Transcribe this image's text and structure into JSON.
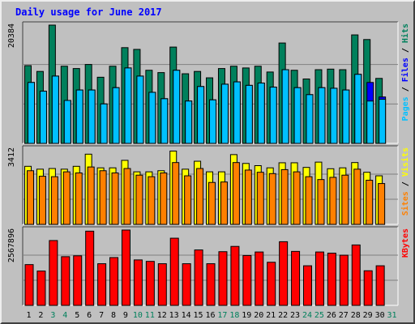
{
  "chart_data": {
    "type": "bar",
    "title": "Daily usage for June 2017",
    "categories": [
      "1",
      "2",
      "3",
      "4",
      "5",
      "6",
      "7",
      "8",
      "9",
      "10",
      "11",
      "12",
      "13",
      "14",
      "15",
      "16",
      "17",
      "18",
      "19",
      "20",
      "21",
      "22",
      "23",
      "24",
      "25",
      "26",
      "27",
      "28",
      "29",
      "30",
      "31"
    ],
    "weekend_days": [
      "3",
      "4",
      "10",
      "11",
      "17",
      "18",
      "24",
      "25",
      "31"
    ],
    "panels": [
      {
        "ymax_label": "20384",
        "ylim": [
          0,
          20384
        ],
        "axis_labels": [
          "Pages",
          "Files",
          "Hits"
        ],
        "series": [
          {
            "name": "Hits",
            "color": "#00805c",
            "values": [
              13400,
              12400,
              20384,
              13300,
              12900,
              13600,
              11400,
              13300,
              16500,
              16200,
              12600,
              12200,
              16600,
              12000,
              12400,
              11300,
              12900,
              13300,
              13000,
              13300,
              12300,
              17300,
              12600,
              11100,
              12700,
              12800,
              12700,
              18700,
              17900,
              11200,
              null
            ]
          },
          {
            "name": "Files",
            "color": "#0000ff",
            "values": [
              10500,
              9000,
              11600,
              7400,
              9200,
              9200,
              6800,
              9600,
              13000,
              11600,
              8800,
              7700,
              12600,
              7300,
              9800,
              7500,
              10200,
              10600,
              10000,
              10400,
              9700,
              12700,
              9600,
              8400,
              9600,
              9500,
              9200,
              11900,
              10500,
              8000,
              null
            ]
          },
          {
            "name": "Pages",
            "color": "#00c0ff",
            "values": [
              10500,
              9000,
              11600,
              7400,
              9200,
              9200,
              6800,
              9600,
              13000,
              11600,
              8800,
              7700,
              12600,
              7300,
              9800,
              7500,
              10200,
              10600,
              10000,
              10400,
              9700,
              12700,
              9600,
              8400,
              9600,
              9500,
              9200,
              11900,
              7300,
              7600,
              null
            ]
          }
        ]
      },
      {
        "ymax_label": "3412",
        "ylim": [
          0,
          3412
        ],
        "axis_labels": [
          "Sites",
          "Visits"
        ],
        "series": [
          {
            "name": "Visits",
            "color": "#ffff00",
            "values": [
              2630,
              2500,
              2530,
              2500,
              2630,
              3180,
              2560,
              2560,
              2900,
              2380,
              2380,
              2430,
              3320,
              2500,
              2860,
              2380,
              2380,
              3160,
              2760,
              2660,
              2560,
              2790,
              2790,
              2580,
              2820,
              2520,
              2560,
              2800,
              2360,
              2200,
              null
            ]
          },
          {
            "name": "Sites",
            "color": "#ff8000",
            "values": [
              2430,
              2180,
              2160,
              2380,
              2330,
              2600,
              2430,
              2330,
              2530,
              2230,
              2160,
              2330,
              2800,
              2200,
              2530,
              1900,
              1920,
              2800,
              2460,
              2360,
              2300,
              2480,
              2380,
              2160,
              2030,
              2130,
              2230,
              2500,
              2000,
              1850,
              null
            ]
          }
        ]
      },
      {
        "ymax_label": "2567896",
        "ylim": [
          0,
          2567896
        ],
        "axis_labels": [
          "KBytes"
        ],
        "series": [
          {
            "name": "KBytes",
            "color": "#ff0000",
            "values": [
              1390000,
              1170000,
              2210000,
              1660000,
              1690000,
              2530000,
              1420000,
              1630000,
              2567896,
              1550000,
              1500000,
              1420000,
              2290000,
              1420000,
              1890000,
              1420000,
              1830000,
              2010000,
              1700000,
              1820000,
              1470000,
              2170000,
              1840000,
              1350000,
              1820000,
              1780000,
              1710000,
              2060000,
              1180000,
              1350000,
              null
            ]
          }
        ]
      }
    ],
    "colors": {
      "background": "#c0c0c0",
      "panel_background": "#c0c0c0",
      "grid": "#808080",
      "title": "#0000ff",
      "tick_weekday": "#000000",
      "tick_weekend": "#00805c"
    },
    "grid": true
  }
}
